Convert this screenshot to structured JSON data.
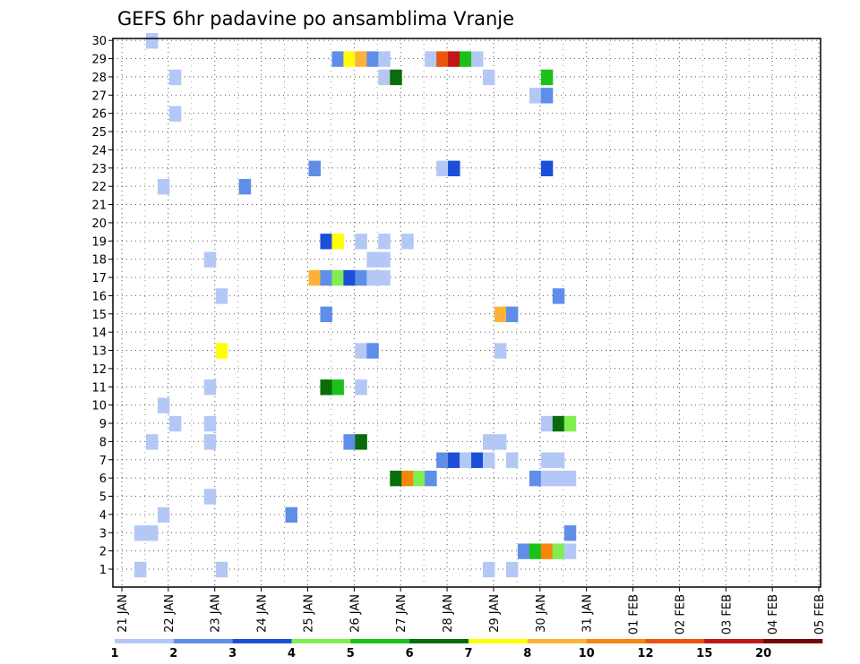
{
  "chart_data": {
    "type": "heatmap",
    "title": "GEFS 6hr padavine po ansamblima Vranje",
    "x_tick_labels": [
      "21 JAN",
      "22 JAN",
      "23 JAN",
      "24 JAN",
      "25 JAN",
      "26 JAN",
      "27 JAN",
      "28 JAN",
      "29 JAN",
      "30 JAN",
      "31 JAN",
      "01 FEB",
      "02 FEB",
      "03 FEB",
      "04 FEB",
      "05 FEB"
    ],
    "y_tick_labels": [
      "1",
      "2",
      "3",
      "4",
      "5",
      "6",
      "7",
      "8",
      "9",
      "10",
      "11",
      "12",
      "13",
      "14",
      "15",
      "16",
      "17",
      "18",
      "19",
      "20",
      "21",
      "22",
      "23",
      "24",
      "25",
      "26",
      "27",
      "28",
      "29",
      "30"
    ],
    "ylim": [
      1,
      30
    ],
    "grid": true,
    "colorbar": {
      "labels": [
        "1",
        "2",
        "3",
        "4",
        "5",
        "6",
        "7",
        "8",
        "10",
        "12",
        "15",
        "20"
      ],
      "colors": [
        "#b4c8f6",
        "#5f8ee8",
        "#1c4fd8",
        "#80ee52",
        "#19c119",
        "#0a6c0a",
        "#ffff00",
        "#fcb238",
        "#f7860c",
        "#eb5311",
        "#c11717",
        "#730707"
      ]
    },
    "units_per_day": "4 steps of 6h",
    "cells": [
      [
        1,
        30,
        0
      ],
      [
        3,
        28,
        0
      ],
      [
        3,
        26,
        0
      ],
      [
        2,
        22,
        0
      ],
      [
        9,
        22,
        1
      ],
      [
        17,
        29,
        1
      ],
      [
        18,
        29,
        6
      ],
      [
        19,
        29,
        7
      ],
      [
        20,
        29,
        1
      ],
      [
        21,
        29,
        0
      ],
      [
        21,
        28,
        0
      ],
      [
        22,
        28,
        5
      ],
      [
        25,
        29,
        0
      ],
      [
        26,
        29,
        9
      ],
      [
        27,
        29,
        10
      ],
      [
        28,
        29,
        4
      ],
      [
        29,
        29,
        0
      ],
      [
        30,
        28,
        0
      ],
      [
        35,
        28,
        4
      ],
      [
        34,
        27,
        0
      ],
      [
        35,
        27,
        1
      ],
      [
        15,
        23,
        1
      ],
      [
        26,
        23,
        0
      ],
      [
        27,
        23,
        2
      ],
      [
        35,
        23,
        2
      ],
      [
        16,
        19,
        2
      ],
      [
        17,
        19,
        6
      ],
      [
        19,
        19,
        0
      ],
      [
        21,
        19,
        0
      ],
      [
        23,
        19,
        0
      ],
      [
        6,
        18,
        0
      ],
      [
        15,
        17,
        7
      ],
      [
        16,
        17,
        1
      ],
      [
        17,
        17,
        3
      ],
      [
        18,
        17,
        2
      ],
      [
        19,
        17,
        1
      ],
      [
        20,
        17,
        0
      ],
      [
        20,
        18,
        0
      ],
      [
        21,
        17,
        0
      ],
      [
        21,
        18,
        0
      ],
      [
        7,
        16,
        0
      ],
      [
        36,
        16,
        1
      ],
      [
        16,
        15,
        1
      ],
      [
        31,
        15,
        7
      ],
      [
        32,
        15,
        1
      ],
      [
        7,
        13,
        6
      ],
      [
        19,
        13,
        0
      ],
      [
        20,
        13,
        1
      ],
      [
        31,
        13,
        0
      ],
      [
        6,
        11,
        0
      ],
      [
        16,
        11,
        5
      ],
      [
        17,
        11,
        4
      ],
      [
        19,
        11,
        0
      ],
      [
        2,
        10,
        0
      ],
      [
        3,
        9,
        0
      ],
      [
        6,
        9,
        0
      ],
      [
        35,
        9,
        0
      ],
      [
        36,
        9,
        5
      ],
      [
        37,
        9,
        3
      ],
      [
        1,
        8,
        0
      ],
      [
        6,
        8,
        0
      ],
      [
        18,
        8,
        1
      ],
      [
        19,
        8,
        5
      ],
      [
        30,
        8,
        0
      ],
      [
        31,
        8,
        0
      ],
      [
        26,
        7,
        1
      ],
      [
        27,
        7,
        2
      ],
      [
        28,
        7,
        0
      ],
      [
        29,
        7,
        2
      ],
      [
        30,
        7,
        0
      ],
      [
        32,
        7,
        0
      ],
      [
        35,
        7,
        0
      ],
      [
        36,
        7,
        0
      ],
      [
        22,
        6,
        5
      ],
      [
        23,
        6,
        8
      ],
      [
        24,
        6,
        3
      ],
      [
        25,
        6,
        1
      ],
      [
        34,
        6,
        1
      ],
      [
        35,
        6,
        0
      ],
      [
        36,
        6,
        0
      ],
      [
        37,
        6,
        0
      ],
      [
        6,
        5,
        0
      ],
      [
        2,
        4,
        0
      ],
      [
        13,
        4,
        1
      ],
      [
        0,
        3,
        0
      ],
      [
        1,
        3,
        0
      ],
      [
        37,
        3,
        1
      ],
      [
        33,
        2,
        1
      ],
      [
        34,
        2,
        4
      ],
      [
        35,
        2,
        8
      ],
      [
        36,
        2,
        3
      ],
      [
        37,
        2,
        0
      ],
      [
        0,
        1,
        0
      ],
      [
        7,
        1,
        0
      ],
      [
        30,
        1,
        0
      ],
      [
        32,
        1,
        0
      ]
    ]
  }
}
